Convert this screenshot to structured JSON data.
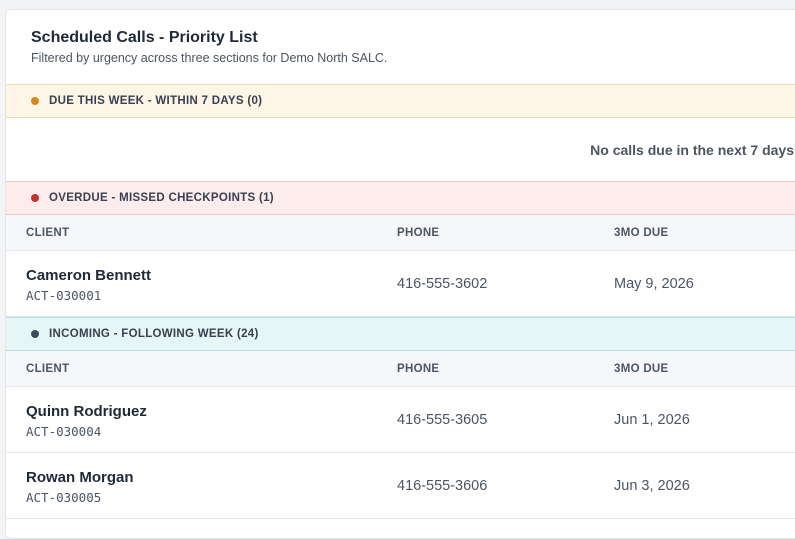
{
  "header": {
    "title": "Scheduled Calls - Priority List",
    "subtitle": "Filtered by urgency across three sections for Demo North SALC."
  },
  "colors": {
    "due_dot": "#d48a1c",
    "overdue_dot": "#c53030",
    "incoming_dot": "#3d4a5c"
  },
  "sections": {
    "due": {
      "label": "DUE THIS WEEK - WITHIN 7 DAYS (0)",
      "empty_text": "No calls due in the next 7 days"
    },
    "overdue": {
      "label": "OVERDUE - MISSED CHECKPOINTS (1)",
      "columns": [
        "CLIENT",
        "PHONE",
        "3MO DUE"
      ],
      "rows": [
        {
          "name": "Cameron Bennett",
          "id": "ACT-030001",
          "phone": "416-555-3602",
          "due": "May 9, 2026"
        }
      ]
    },
    "incoming": {
      "label": "INCOMING - FOLLOWING WEEK (24)",
      "columns": [
        "CLIENT",
        "PHONE",
        "3MO DUE"
      ],
      "rows": [
        {
          "name": "Quinn Rodriguez",
          "id": "ACT-030004",
          "phone": "416-555-3605",
          "due": "Jun 1, 2026"
        },
        {
          "name": "Rowan Morgan",
          "id": "ACT-030005",
          "phone": "416-555-3606",
          "due": "Jun 3, 2026"
        }
      ]
    }
  }
}
